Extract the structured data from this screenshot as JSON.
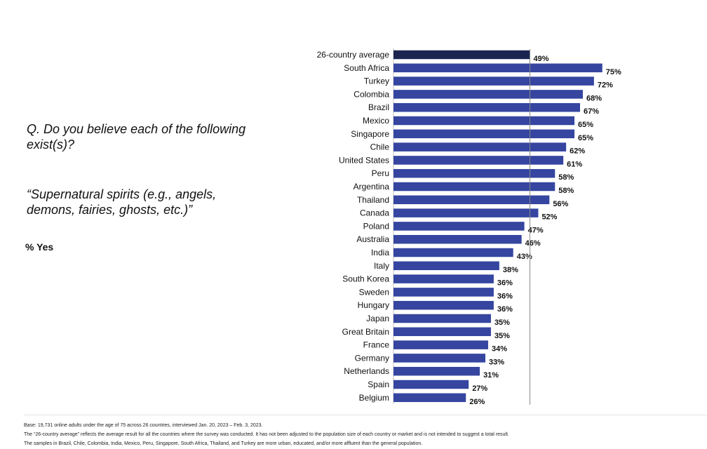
{
  "question": "Q. Do you believe each of the following exist(s)?",
  "quote": "“Supernatural spirits (e.g., angels, demons, fairies, ghosts, etc.)”",
  "measure": "% Yes",
  "footnotes": [
    "Base: 19,731 online adults under the age of 75 across 26 countries, interviewed Jan. 20, 2023 – Feb. 3, 2023.",
    "The “26-country average” reflects the average result for all the countries where the survey was conducted. It has not been adjusted to the population size of each country or market and is not intended to suggest a total result.",
    "The samples in Brazil, Chile, Colombia, India, Mexico, Peru, Singapore, South Africa, Thailand, and Turkey are more urban, educated, and/or more affluent than the general population."
  ],
  "colors": {
    "bar": "#3545a0",
    "average_bar": "#1b2550",
    "reference_line": "#888888"
  },
  "chart_data": {
    "type": "bar",
    "orientation": "horizontal",
    "categories": [
      "26-country average",
      "South Africa",
      "Turkey",
      "Colombia",
      "Brazil",
      "Mexico",
      "Singapore",
      "Chile",
      "United States",
      "Peru",
      "Argentina",
      "Thailand",
      "Canada",
      "Poland",
      "Australia",
      "India",
      "Italy",
      "South Korea",
      "Sweden",
      "Hungary",
      "Japan",
      "Great Britain",
      "France",
      "Germany",
      "Netherlands",
      "Spain",
      "Belgium"
    ],
    "values": [
      49,
      75,
      72,
      68,
      67,
      65,
      65,
      62,
      61,
      58,
      58,
      56,
      52,
      47,
      46,
      43,
      38,
      36,
      36,
      36,
      35,
      35,
      34,
      33,
      31,
      27,
      26
    ],
    "value_labels": [
      "49%",
      "75%",
      "72%",
      "68%",
      "67%",
      "65%",
      "65%",
      "62%",
      "61%",
      "58%",
      "58%",
      "56%",
      "52%",
      "47%",
      "46%",
      "43%",
      "38%",
      "36%",
      "36%",
      "36%",
      "35%",
      "35%",
      "34%",
      "33%",
      "31%",
      "27%",
      "26%"
    ],
    "reference_value": 49,
    "xlim": [
      0,
      100
    ],
    "grid": false,
    "legend": "none"
  }
}
